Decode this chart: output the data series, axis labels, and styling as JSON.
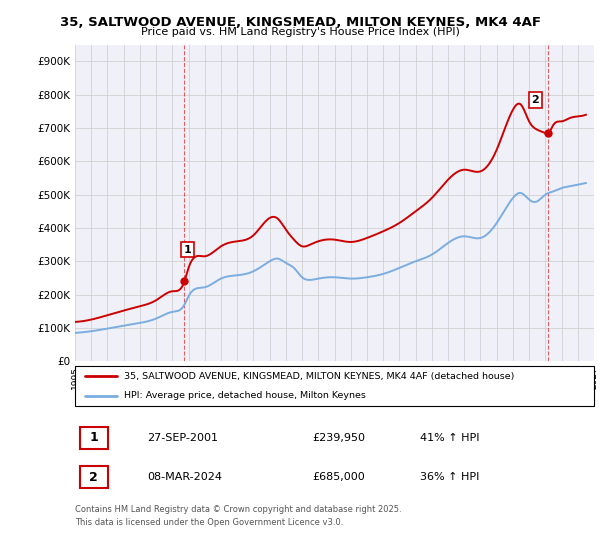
{
  "title": "35, SALTWOOD AVENUE, KINGSMEAD, MILTON KEYNES, MK4 4AF",
  "subtitle": "Price paid vs. HM Land Registry's House Price Index (HPI)",
  "legend_line1": "35, SALTWOOD AVENUE, KINGSMEAD, MILTON KEYNES, MK4 4AF (detached house)",
  "legend_line2": "HPI: Average price, detached house, Milton Keynes",
  "table_rows": [
    {
      "num": "1",
      "date": "27-SEP-2001",
      "price": "£239,950",
      "hpi": "41% ↑ HPI"
    },
    {
      "num": "2",
      "date": "08-MAR-2024",
      "price": "£685,000",
      "hpi": "36% ↑ HPI"
    }
  ],
  "footnote": "Contains HM Land Registry data © Crown copyright and database right 2025.\nThis data is licensed under the Open Government Licence v3.0.",
  "red_color": "#cc0000",
  "blue_color": "#7aade0",
  "marker1_year": 2001.75,
  "marker2_year": 2024.19,
  "marker1_price": 239950,
  "marker2_price": 685000,
  "ylim_max": 950000,
  "xlim_min": 1995,
  "xlim_max": 2027,
  "chart_bg": "#f0f0f8",
  "background_color": "#ffffff",
  "grid_color": "#cccccc",
  "hpi_x": [
    1995,
    1996,
    1997,
    1998,
    1999,
    2000,
    2001,
    2001.75,
    2002,
    2003,
    2004,
    2005,
    2006,
    2007,
    2007.5,
    2008,
    2008.5,
    2009,
    2009.5,
    2010,
    2011,
    2012,
    2013,
    2014,
    2015,
    2016,
    2017,
    2018,
    2019,
    2020,
    2021,
    2022,
    2022.5,
    2023,
    2023.5,
    2024,
    2024.5,
    2025,
    2025.5,
    2026,
    2026.5
  ],
  "hpi_y": [
    85000,
    90000,
    98000,
    107000,
    115000,
    128000,
    148000,
    170000,
    195000,
    222000,
    248000,
    258000,
    270000,
    300000,
    308000,
    295000,
    280000,
    252000,
    244000,
    248000,
    252000,
    248000,
    252000,
    262000,
    280000,
    300000,
    320000,
    355000,
    375000,
    370000,
    415000,
    490000,
    505000,
    485000,
    480000,
    500000,
    510000,
    520000,
    525000,
    530000,
    535000
  ],
  "prop_x": [
    1995,
    1996,
    1997,
    1998,
    1999,
    2000,
    2001,
    2001.75,
    2002,
    2003,
    2004,
    2005,
    2006,
    2007,
    2007.5,
    2008,
    2008.5,
    2009,
    2009.5,
    2010,
    2011,
    2012,
    2013,
    2014,
    2015,
    2016,
    2017,
    2018,
    2019,
    2020,
    2021,
    2022,
    2022.5,
    2023,
    2023.5,
    2024,
    2024.19,
    2024.5,
    2025,
    2025.5,
    2026,
    2026.5
  ],
  "prop_y": [
    118000,
    125000,
    138000,
    152000,
    165000,
    183000,
    210000,
    239950,
    280000,
    315000,
    345000,
    360000,
    378000,
    430000,
    428000,
    395000,
    365000,
    345000,
    350000,
    360000,
    365000,
    358000,
    370000,
    390000,
    415000,
    450000,
    490000,
    545000,
    575000,
    570000,
    635000,
    755000,
    770000,
    720000,
    695000,
    685000,
    685000,
    710000,
    720000,
    730000,
    735000,
    740000
  ]
}
